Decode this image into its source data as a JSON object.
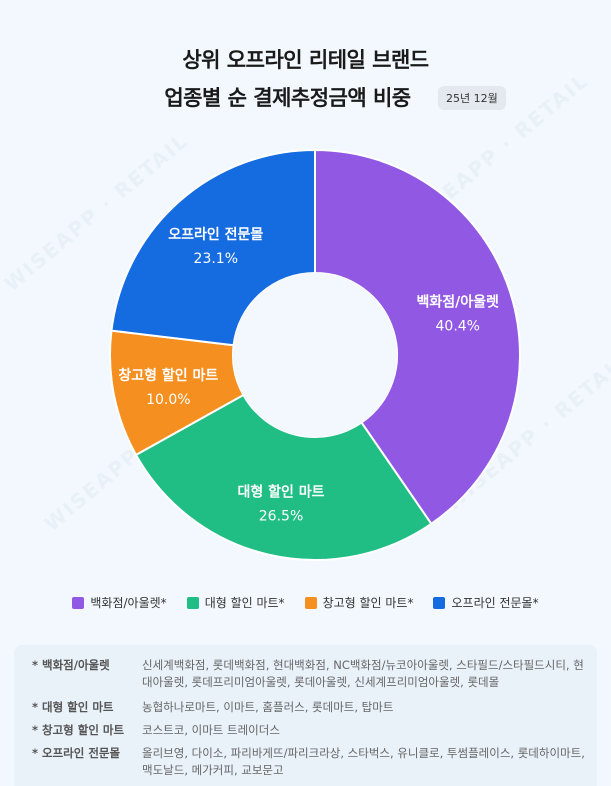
{
  "title": {
    "line1": "상위 오프라인 리테일 브랜드",
    "line2": "업종별 순 결제추정금액 비중",
    "period_badge": "25년 12월"
  },
  "watermark": "WISEAPP · RETAIL",
  "chart_data": {
    "type": "pie",
    "donut": true,
    "start": "top, clockwise",
    "categories": [
      "백화점/아울렛",
      "대형 할인 마트",
      "창고형 할인 마트",
      "오프라인 전문몰"
    ],
    "values": [
      40.4,
      26.5,
      10.0,
      23.1
    ],
    "value_labels": [
      "40.4%",
      "26.5%",
      "10.0%",
      "23.1%"
    ],
    "colors": [
      "#9159e3",
      "#20bd84",
      "#f48f20",
      "#156be0"
    ],
    "legend": {
      "position": "bottom",
      "entries": [
        "백화점/아울렛*",
        "대형 할인 마트*",
        "창고형 할인 마트*",
        "오프라인 전문몰*"
      ]
    }
  },
  "notes": [
    {
      "key": "* 백화점/아울렛",
      "value": "신세계백화점, 롯데백화점, 현대백화점, NC백화점/뉴코아아울렛, 스타필드/스타필드시티, 현대아울렛, 롯데프리미엄아울렛, 롯데아울렛, 신세계프리미엄아울렛, 롯데몰"
    },
    {
      "key": "* 대형 할인 마트",
      "value": "농협하나로마트, 이마트, 홈플러스, 롯데마트, 탑마트"
    },
    {
      "key": "* 창고형 할인 마트",
      "value": "코스트코, 이마트 트레이더스"
    },
    {
      "key": "* 오프라인 전문몰",
      "value": "올리브영, 다이소, 파리바게뜨/파리크라상, 스타벅스, 유니클로, 투썸플레이스, 롯데하이마트, 맥도날드, 메가커피, 교보문고"
    }
  ]
}
